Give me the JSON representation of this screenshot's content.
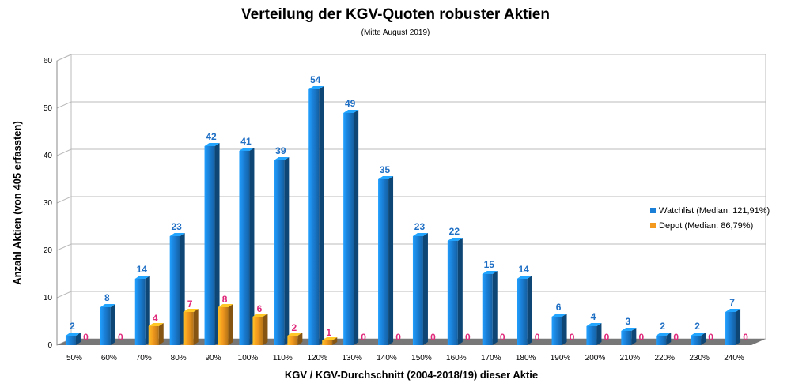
{
  "chart_data": {
    "type": "bar",
    "title": "Verteilung der KGV-Quoten robuster Aktien",
    "subtitle": "(Mitte August 2019)",
    "xlabel": "KGV / KGV-Durchschnitt (2004-2018/19) dieser Aktie",
    "ylabel": "Anzahl Aktien (von 405 erfassten)",
    "ylim": [
      0,
      60
    ],
    "yticks": [
      0,
      10,
      20,
      30,
      40,
      50,
      60
    ],
    "grid": true,
    "legend_position": "right",
    "categories": [
      "50%",
      "60%",
      "70%",
      "80%",
      "90%",
      "100%",
      "110%",
      "120%",
      "130%",
      "140%",
      "150%",
      "160%",
      "170%",
      "180%",
      "190%",
      "200%",
      "210%",
      "220%",
      "230%",
      "240%"
    ],
    "series": [
      {
        "name": "Watchlist (Median: 121,91%)",
        "color": "#1a7fd6",
        "values": [
          2,
          8,
          14,
          23,
          42,
          41,
          39,
          54,
          49,
          35,
          23,
          22,
          15,
          14,
          6,
          4,
          3,
          2,
          2,
          7
        ]
      },
      {
        "name": "Depot (Median: 86,79%)",
        "color": "#f39a1e",
        "values": [
          0,
          0,
          4,
          7,
          8,
          6,
          2,
          1,
          0,
          0,
          0,
          0,
          0,
          0,
          0,
          0,
          0,
          0,
          0,
          0
        ]
      }
    ]
  }
}
